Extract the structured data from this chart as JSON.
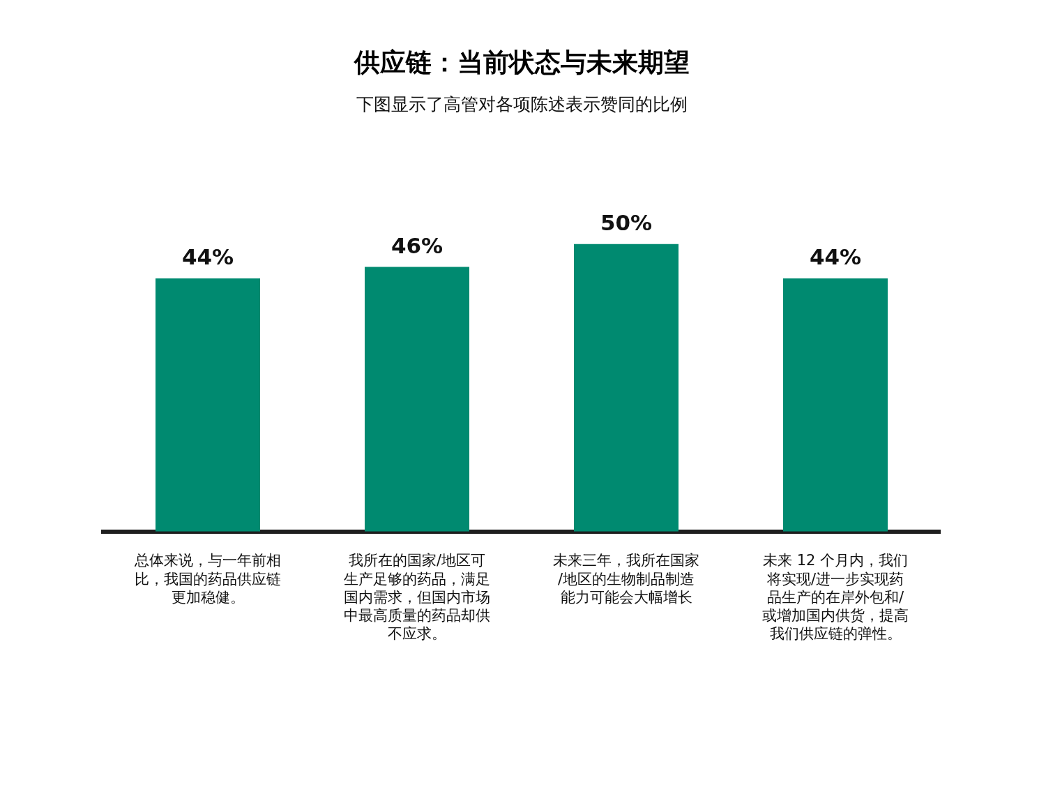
{
  "chart_data": {
    "type": "bar",
    "title": "供应链：当前状态与未来期望",
    "subtitle": "下图显示了高管对各项陈述表示赞同的比例",
    "categories": [
      "总体来说，与一年前相比，我国的药品供应链更加稳健。",
      "我所在的国家/地区可生产足够的药品，满足国内需求，但国内市场中最高质量的药品却供不应求。",
      "未来三年，我所在国家/地区的生物制品制造能力可能会大幅增长",
      "未来 12 个月内，我们将实现/进一步实现药品生产的在岸外包和/或增加国内供货，提高我们供应链的弹性。"
    ],
    "values": [
      44,
      46,
      50,
      44
    ],
    "color": "#008a70",
    "value_labels": [
      "44%",
      "46%",
      "50%",
      "44%"
    ],
    "tick_labels": "x"
  }
}
